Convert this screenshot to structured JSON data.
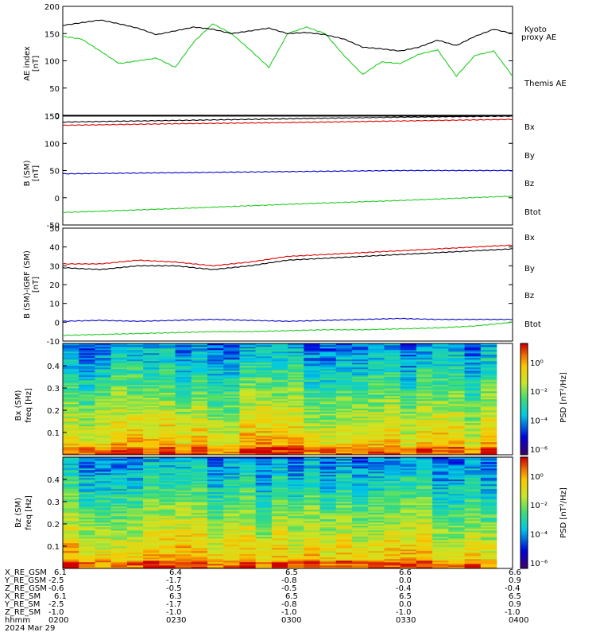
{
  "panels": {
    "ae": {
      "ylabel_main": "AE index",
      "ylabel_unit": "[nT]",
      "ticks": [
        "0",
        "50",
        "100",
        "150",
        "200"
      ],
      "legend": [
        {
          "text": "Kyoto",
          "color": "#22cc22"
        },
        {
          "text": "proxy AE",
          "color": "#22cc22"
        },
        {
          "text": "Themis AE",
          "color": "#000000"
        }
      ]
    },
    "bsm": {
      "ylabel_main": "B (SM)",
      "ylabel_unit": "[nT]",
      "ticks": [
        "-50",
        "0",
        "50",
        "100",
        "150"
      ],
      "legend": [
        {
          "text": "Bx",
          "color": "#0000cc"
        },
        {
          "text": "By",
          "color": "#22cc22"
        },
        {
          "text": "Bz",
          "color": "#dd0000"
        },
        {
          "text": "Btot",
          "color": "#000000"
        }
      ]
    },
    "bigrf": {
      "ylabel_main": "B (SM)-IGRF (SM)",
      "ylabel_unit": "[nT]",
      "ticks": [
        "-10",
        "0",
        "10",
        "20",
        "30",
        "40",
        "50"
      ],
      "legend": [
        {
          "text": "Bx",
          "color": "#0000cc"
        },
        {
          "text": "By",
          "color": "#22cc22"
        },
        {
          "text": "Bz",
          "color": "#dd0000"
        },
        {
          "text": "Btot",
          "color": "#000000"
        }
      ]
    },
    "spec_bx": {
      "ylabel_main": "Bx (SM)",
      "ylabel_sub": "freq  [Hz]",
      "ticks": [
        "0.1",
        "0.2",
        "0.3",
        "0.4"
      ],
      "colorbar_label": "PSD [nT²/Hz]",
      "colorbar_ticks": [
        "10⁰",
        "10⁻²",
        "10⁻⁴",
        "10⁻⁶"
      ]
    },
    "spec_bz": {
      "ylabel_main": "Bz (SM)",
      "ylabel_sub": "freq  [Hz]",
      "ticks": [
        "0.1",
        "0.2",
        "0.3",
        "0.4"
      ],
      "colorbar_label": "PSD [nT²/Hz]",
      "colorbar_ticks": [
        "10⁰",
        "10⁻²",
        "10⁻⁴",
        "10⁻⁶"
      ]
    }
  },
  "ephemeris": {
    "rows": [
      {
        "label": "X_RE_GSM",
        "values": [
          "6.1",
          "6.4",
          "6.5",
          "6.6",
          "6.6"
        ]
      },
      {
        "label": "Y_RE_GSM",
        "values": [
          "-2.5",
          "-1.7",
          "-0.8",
          "0.0",
          "0.9"
        ]
      },
      {
        "label": "Z_RE_GSM",
        "values": [
          "-0.6",
          "-0.5",
          "-0.5",
          "-0.4",
          "-0.4"
        ]
      },
      {
        "label": "X_RE_SM",
        "values": [
          "6.1",
          "6.3",
          "6.5",
          "6.5",
          "6.5"
        ]
      },
      {
        "label": "Y_RE_SM",
        "values": [
          "-2.5",
          "-1.7",
          "-0.8",
          "0.0",
          "0.9"
        ]
      },
      {
        "label": "Z_RE_SM",
        "values": [
          "-1.0",
          "-1.0",
          "-1.0",
          "-1.0",
          "-1.0"
        ]
      },
      {
        "label": "hhmm",
        "values": [
          "0200",
          "0230",
          "0300",
          "0330",
          "0400"
        ]
      }
    ],
    "date": "2024 Mar 29"
  },
  "chart_data": [
    {
      "type": "line",
      "ylabel": "AE index [nT]",
      "ylim": [
        0,
        200
      ],
      "x": [
        "0200",
        "0205",
        "0210",
        "0215",
        "0220",
        "0225",
        "0230",
        "0235",
        "0240",
        "0245",
        "0250",
        "0255",
        "0300",
        "0305",
        "0310",
        "0315",
        "0320",
        "0325",
        "0330",
        "0335",
        "0340",
        "0345",
        "0350",
        "0355",
        "0400"
      ],
      "series": [
        {
          "name": "Kyoto proxy AE",
          "color": "#22cc22",
          "values": [
            145,
            140,
            118,
            95,
            100,
            105,
            88,
            135,
            168,
            150,
            120,
            88,
            150,
            162,
            150,
            110,
            75,
            98,
            95,
            112,
            120,
            72,
            110,
            118,
            72
          ]
        },
        {
          "name": "Themis AE",
          "color": "#000000",
          "values": [
            165,
            170,
            175,
            168,
            160,
            148,
            155,
            162,
            158,
            150,
            155,
            160,
            150,
            152,
            148,
            140,
            125,
            122,
            118,
            125,
            138,
            128,
            145,
            158,
            150
          ]
        }
      ]
    },
    {
      "type": "line",
      "ylabel": "B (SM) [nT]",
      "ylim": [
        -50,
        150
      ],
      "x": [
        "0200",
        "0230",
        "0300",
        "0330",
        "0400"
      ],
      "series": [
        {
          "name": "Bx",
          "color": "#0000cc",
          "values": [
            44,
            46,
            48,
            50,
            50
          ]
        },
        {
          "name": "By",
          "color": "#22cc22",
          "values": [
            -27,
            -20,
            -12,
            -5,
            3
          ]
        },
        {
          "name": "Bz",
          "color": "#dd0000",
          "values": [
            133,
            136,
            138,
            141,
            144
          ]
        },
        {
          "name": "Btot",
          "color": "#000000",
          "values": [
            139,
            142,
            145,
            148,
            150
          ]
        }
      ]
    },
    {
      "type": "line",
      "ylabel": "B (SM)-IGRF (SM) [nT]",
      "ylim": [
        -10,
        50
      ],
      "x": [
        "0200",
        "0210",
        "0220",
        "0230",
        "0240",
        "0250",
        "0300",
        "0310",
        "0320",
        "0330",
        "0340",
        "0350",
        "0400"
      ],
      "series": [
        {
          "name": "Bx",
          "color": "#0000cc",
          "values": [
            0.5,
            1,
            0.5,
            1,
            1.5,
            1,
            0.5,
            1,
            1.5,
            2,
            1.5,
            1.5,
            1.5
          ]
        },
        {
          "name": "By",
          "color": "#22cc22",
          "values": [
            -7,
            -6.5,
            -6,
            -5.5,
            -5,
            -5,
            -4.5,
            -4,
            -4,
            -3.5,
            -3,
            -2,
            0
          ]
        },
        {
          "name": "Bz",
          "color": "#dd0000",
          "values": [
            31,
            31,
            33,
            32,
            30,
            32,
            35,
            36,
            37,
            38,
            39,
            40,
            41
          ]
        },
        {
          "name": "Btot",
          "color": "#000000",
          "values": [
            29,
            28,
            30,
            30,
            28,
            30,
            33,
            34,
            35,
            36,
            37,
            38,
            39
          ]
        }
      ]
    },
    {
      "type": "heatmap",
      "name": "Bx (SM) dynamic spectrum",
      "ylabel": "freq [Hz]",
      "ylim": [
        0,
        0.5
      ],
      "colorbar": "PSD [nT²/Hz]",
      "seed": 7
    },
    {
      "type": "heatmap",
      "name": "Bz (SM) dynamic spectrum",
      "ylabel": "freq [Hz]",
      "ylim": [
        0,
        0.5
      ],
      "colorbar": "PSD [nT²/Hz]",
      "seed": 19
    }
  ]
}
